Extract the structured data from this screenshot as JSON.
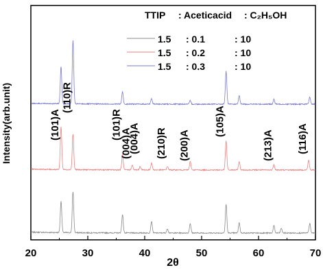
{
  "chart_data": {
    "type": "line",
    "xlabel": "2θ",
    "ylabel": "Intensity(arb.unit)",
    "xlim": [
      20,
      70
    ],
    "x_ticks": [
      "20",
      "30",
      "40",
      "50",
      "60",
      "70"
    ],
    "y_ticks_labeled": false,
    "grid": false,
    "legend": {
      "position": "top-right",
      "header": [
        "TTIP",
        ": Aceticacid",
        ": C₂H₅OH"
      ],
      "rows": [
        [
          "1.5",
          ": 0.1",
          ": 10"
        ],
        [
          "1.5",
          ": 0.2",
          ": 10"
        ],
        [
          "1.5",
          ": 0.3",
          ": 10"
        ]
      ]
    },
    "series": [
      {
        "color": "#888888",
        "offset": 0,
        "peaks": [
          [
            25.3,
            46
          ],
          [
            27.4,
            60
          ],
          [
            36.1,
            27
          ],
          [
            41.2,
            17
          ],
          [
            44.0,
            6
          ],
          [
            48.0,
            14
          ],
          [
            54.3,
            42
          ],
          [
            56.6,
            15
          ],
          [
            62.7,
            11
          ],
          [
            64.0,
            7
          ],
          [
            69.0,
            14
          ]
        ]
      },
      {
        "color": "#e88080",
        "offset": 92,
        "peaks": [
          [
            25.3,
            63
          ],
          [
            27.4,
            52
          ],
          [
            36.1,
            22
          ],
          [
            37.8,
            7
          ],
          [
            39.2,
            5
          ],
          [
            41.2,
            10
          ],
          [
            44.0,
            5
          ],
          [
            48.0,
            12
          ],
          [
            54.3,
            42
          ],
          [
            56.6,
            12
          ],
          [
            62.7,
            8
          ],
          [
            68.8,
            14
          ]
        ]
      },
      {
        "color": "#7878d0",
        "offset": 188,
        "peaks": [
          [
            25.3,
            54
          ],
          [
            27.4,
            92
          ],
          [
            36.1,
            18
          ],
          [
            41.2,
            8
          ],
          [
            48.0,
            5
          ],
          [
            54.3,
            48
          ],
          [
            56.6,
            12
          ],
          [
            62.7,
            7
          ],
          [
            69.0,
            10
          ]
        ]
      }
    ],
    "annotations": [
      {
        "text": "(101)A",
        "x": 25.3
      },
      {
        "text": "(110)R",
        "x": 27.4
      },
      {
        "text": "(101)R",
        "x": 36.1
      },
      {
        "text": "(004)A",
        "x": 37.8
      },
      {
        "text": "(004)A",
        "x": 39.2
      },
      {
        "text": "(210)R",
        "x": 44.0
      },
      {
        "text": "(200)A",
        "x": 48.0
      },
      {
        "text": "(105)A",
        "x": 54.3
      },
      {
        "text": "(213)A",
        "x": 62.7
      },
      {
        "text": "(116)A",
        "x": 68.8
      }
    ]
  }
}
